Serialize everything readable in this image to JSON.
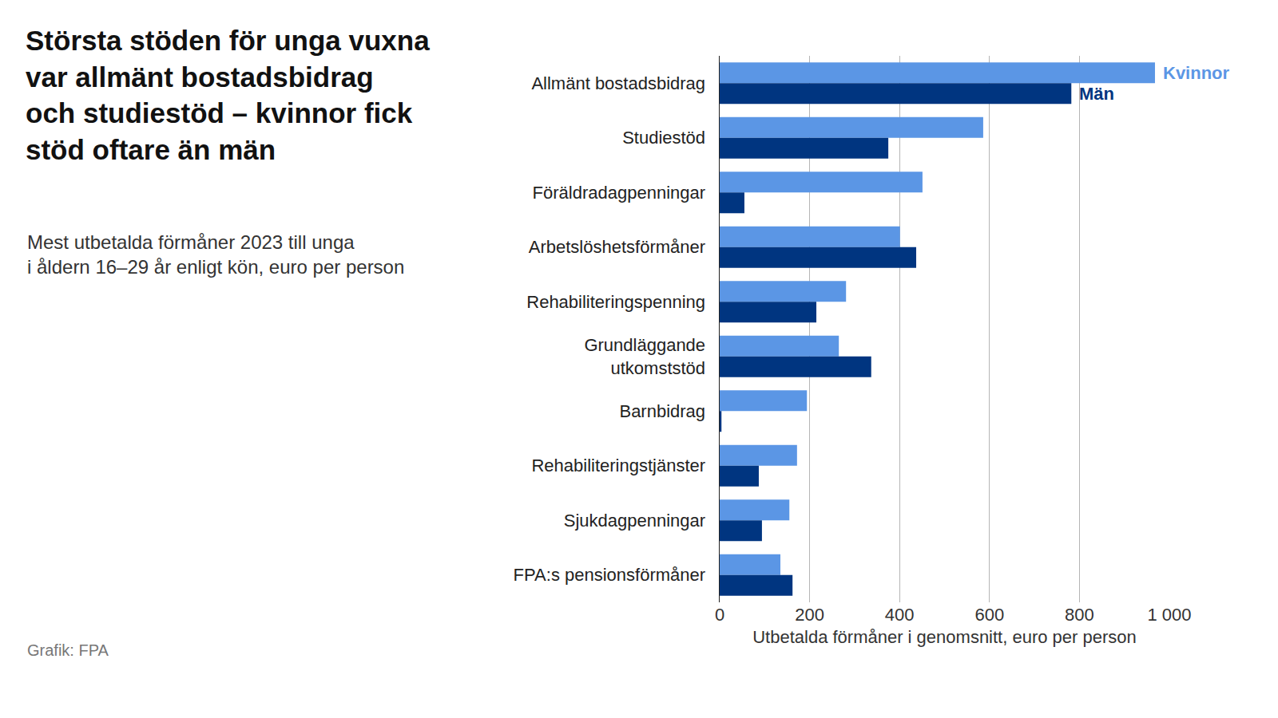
{
  "chart_data": {
    "type": "bar",
    "orientation": "horizontal",
    "title": "Största stöden för unga vuxna\nvar allmänt bostadsbidrag\noch studiestöd – kvinnor fick\nstöd oftare än män",
    "subtitle": "Mest utbetalda förmåner 2023 till unga\ni åldern 16–29 år enligt kön, euro per person",
    "source": "Grafik: FPA",
    "x_label": "Utbetalda förmåner i genomsnitt, euro per person",
    "categories": [
      "Allmänt bostadsbidrag",
      "Studiestöd",
      "Föräldradagpenningar",
      "Arbetslöshetsförmåner",
      "Rehabiliteringspenning",
      "Grundläggande\nutkomststöd",
      "Barnbidrag",
      "Rehabiliteringstjänster",
      "Sjukdagpenningar",
      "FPA:s pensionsförmåner"
    ],
    "series": [
      {
        "name": "Kvinnor",
        "color": "#5b96e5",
        "values": [
          968,
          586,
          451,
          401,
          281,
          265,
          194,
          172,
          155,
          135
        ]
      },
      {
        "name": "Män",
        "color": "#003580",
        "values": [
          782,
          375,
          55,
          437,
          215,
          337,
          4,
          87,
          94,
          162
        ]
      }
    ],
    "xlim": [
      0,
      1000
    ],
    "xticks": [
      0,
      200,
      400,
      600,
      800,
      {
        "value": 1000,
        "label": "1 000"
      }
    ],
    "grid": true
  }
}
